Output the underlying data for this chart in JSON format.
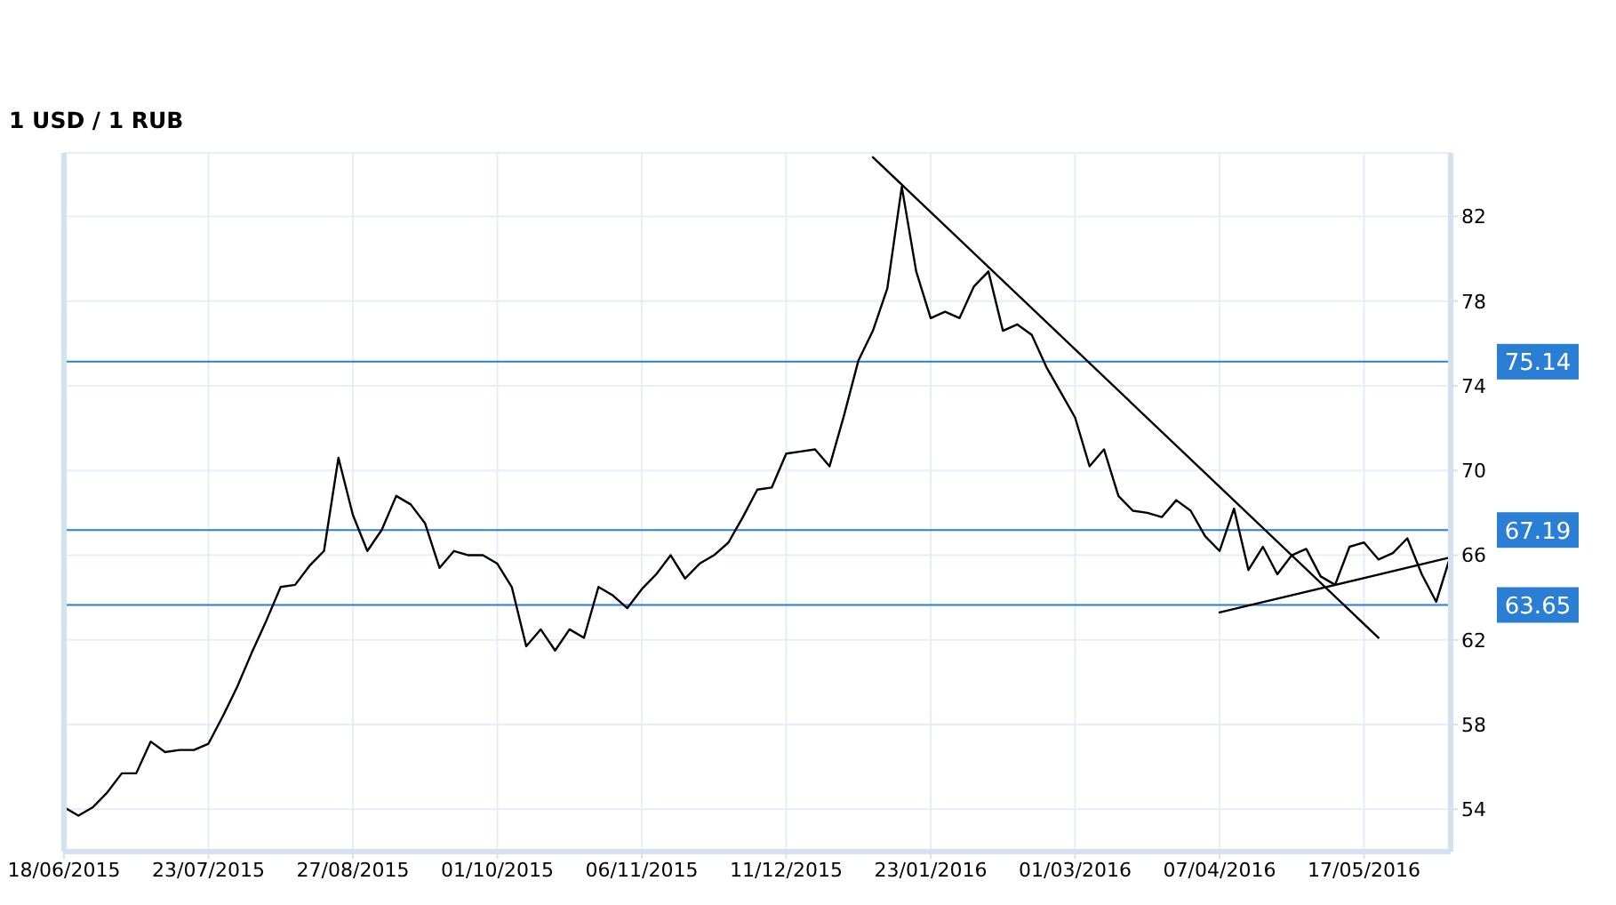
{
  "chart_data": {
    "type": "line",
    "title": "1 USD / 1 RUB",
    "categories": [
      "18/06/2015",
      null,
      null,
      null,
      null,
      null,
      null,
      null,
      null,
      null,
      "23/07/2015",
      null,
      null,
      null,
      null,
      null,
      null,
      null,
      null,
      null,
      "27/08/2015",
      null,
      null,
      null,
      null,
      null,
      null,
      null,
      null,
      null,
      "01/10/2015",
      null,
      null,
      null,
      null,
      null,
      null,
      null,
      null,
      null,
      "06/11/2015",
      null,
      null,
      null,
      null,
      null,
      null,
      null,
      null,
      null,
      "11/12/2015",
      null,
      null,
      null,
      null,
      null,
      null,
      null,
      null,
      null,
      "23/01/2016",
      null,
      null,
      null,
      null,
      null,
      null,
      null,
      null,
      null,
      "01/03/2016",
      null,
      null,
      null,
      null,
      null,
      null,
      null,
      null,
      null,
      "07/04/2016",
      null,
      null,
      null,
      null,
      null,
      null,
      null,
      null,
      null,
      "17/05/2016",
      null,
      null,
      null,
      null,
      null,
      null
    ],
    "series": [
      {
        "color": "#000000",
        "values": [
          54.1,
          53.7,
          54.1,
          54.8,
          55.7,
          55.7,
          57.2,
          56.7,
          56.8,
          56.8,
          57.1,
          58.4,
          59.8,
          61.4,
          62.9,
          64.5,
          64.6,
          65.5,
          66.2,
          70.6,
          67.9,
          66.2,
          67.2,
          68.8,
          68.4,
          67.5,
          65.4,
          66.2,
          66.0,
          66.0,
          65.6,
          64.5,
          61.7,
          62.5,
          61.5,
          62.5,
          62.1,
          64.5,
          64.1,
          63.5,
          64.4,
          65.1,
          66.0,
          64.9,
          65.6,
          66.0,
          66.6,
          67.8,
          69.1,
          69.2,
          70.8,
          70.9,
          71.0,
          70.2,
          72.6,
          75.2,
          76.6,
          78.6,
          83.4,
          79.4,
          77.2,
          77.5,
          77.2,
          78.7,
          79.4,
          76.6,
          76.9,
          76.4,
          74.9,
          73.7,
          72.5,
          70.2,
          71.0,
          68.8,
          68.1,
          68.0,
          67.8,
          68.6,
          68.1,
          66.9,
          66.2,
          68.2,
          65.3,
          66.4,
          65.1,
          66.0,
          66.3,
          65.0,
          64.6,
          66.4,
          66.6,
          65.8,
          66.1,
          66.8,
          65.1,
          63.8,
          66.0
        ]
      },
      {
        "type": "line",
        "color": "#000000",
        "values": [
          null,
          null,
          null,
          null,
          null,
          null,
          null,
          null,
          null,
          null,
          null,
          null,
          null,
          null,
          null,
          null,
          null,
          null,
          null,
          null,
          null,
          null,
          null,
          null,
          null,
          null,
          null,
          null,
          null,
          null,
          null,
          null,
          null,
          null,
          null,
          null,
          null,
          null,
          null,
          null,
          null,
          null,
          null,
          null,
          null,
          null,
          null,
          null,
          null,
          null,
          null,
          null,
          null,
          null,
          null,
          null,
          84.8,
          null,
          null,
          null,
          null,
          null,
          null,
          null,
          null,
          null,
          null,
          null,
          null,
          null,
          null,
          null,
          null,
          null,
          null,
          null,
          null,
          null,
          null,
          null,
          null,
          null,
          null,
          null,
          null,
          null,
          null,
          null,
          null,
          null,
          null,
          62.1,
          null,
          null,
          null,
          null,
          null
        ]
      },
      {
        "type": "line",
        "color": "#000000",
        "values": [
          null,
          null,
          null,
          null,
          null,
          null,
          null,
          null,
          null,
          null,
          null,
          null,
          null,
          null,
          null,
          null,
          null,
          null,
          null,
          null,
          null,
          null,
          null,
          null,
          null,
          null,
          null,
          null,
          null,
          null,
          null,
          null,
          null,
          null,
          null,
          null,
          null,
          null,
          null,
          null,
          null,
          null,
          null,
          null,
          null,
          null,
          null,
          null,
          null,
          null,
          null,
          null,
          null,
          null,
          null,
          null,
          null,
          null,
          null,
          null,
          null,
          null,
          null,
          null,
          null,
          null,
          null,
          null,
          null,
          null,
          null,
          null,
          null,
          null,
          null,
          null,
          null,
          null,
          null,
          null,
          63.3,
          null,
          null,
          null,
          null,
          null,
          null,
          null,
          null,
          null,
          null,
          null,
          null,
          null,
          null,
          null,
          65.9
        ]
      }
    ],
    "ylim": [
      52,
      85
    ],
    "yticks": [
      54,
      58,
      62,
      66,
      70,
      74,
      78,
      82
    ],
    "grid": true,
    "ref_lines": [
      {
        "axis": "y",
        "value": 75.14,
        "label": "75.14",
        "color": "#2a7fd4"
      },
      {
        "axis": "y",
        "value": 67.19,
        "label": "67.19",
        "color": "#2a7fd4"
      },
      {
        "axis": "y",
        "value": 63.65,
        "label": "63.65",
        "color": "#2a7fd4"
      }
    ]
  }
}
